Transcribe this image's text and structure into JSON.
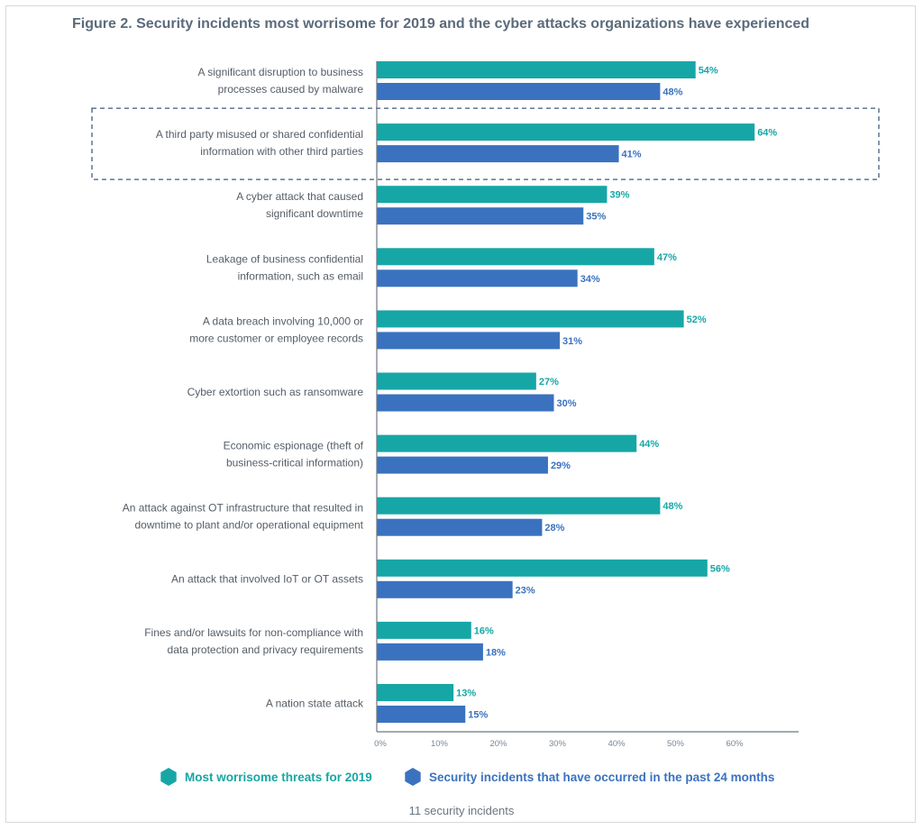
{
  "chart_data": {
    "type": "bar",
    "orientation": "horizontal",
    "title": "Figure 2. Security incidents most worrisome for 2019 and the cyber attacks organizations have experienced",
    "categories": [
      [
        "A significant disruption to business",
        "processes caused by malware"
      ],
      [
        "A third party misused or shared confidential",
        "information with other third parties"
      ],
      [
        "A cyber attack that caused",
        "significant downtime"
      ],
      [
        "Leakage of business confidential",
        "information, such as email"
      ],
      [
        "A data breach involving 10,000 or",
        "more customer or employee records"
      ],
      [
        "Cyber extortion such as ransomware"
      ],
      [
        "Economic espionage (theft of",
        "business-critical information)"
      ],
      [
        "An attack against OT infrastructure that resulted in",
        "downtime to plant and/or operational equipment"
      ],
      [
        "An attack that involved IoT or OT assets"
      ],
      [
        "Fines and/or lawsuits for non-compliance with",
        "data protection and privacy requirements"
      ],
      [
        "A nation state attack"
      ]
    ],
    "series": [
      {
        "name": "Most worrisome threats for 2019",
        "color": "#17a6a6",
        "values": [
          54,
          64,
          39,
          47,
          52,
          27,
          44,
          48,
          56,
          16,
          13
        ],
        "labels": [
          "54%",
          "64%",
          "39%",
          "47%",
          "52%",
          "27%",
          "44%",
          "48%",
          "56%",
          "16%",
          "13%"
        ]
      },
      {
        "name": "Security incidents that have occurred in the past 24 months",
        "color": "#3a72bf",
        "values": [
          48,
          41,
          35,
          34,
          31,
          30,
          29,
          28,
          23,
          18,
          15
        ],
        "labels": [
          "48%",
          "41%",
          "35%",
          "34%",
          "31%",
          "30%",
          "29%",
          "28%",
          "23%",
          "18%",
          "15%"
        ]
      }
    ],
    "xlim": [
      0,
      70
    ],
    "xticks": [
      "0%",
      "10%",
      "20%",
      "30%",
      "40%",
      "50%",
      "60%"
    ],
    "highlighted_category_index": 1,
    "legend": "bottom",
    "grid": false
  },
  "footnote": "11 security incidents"
}
